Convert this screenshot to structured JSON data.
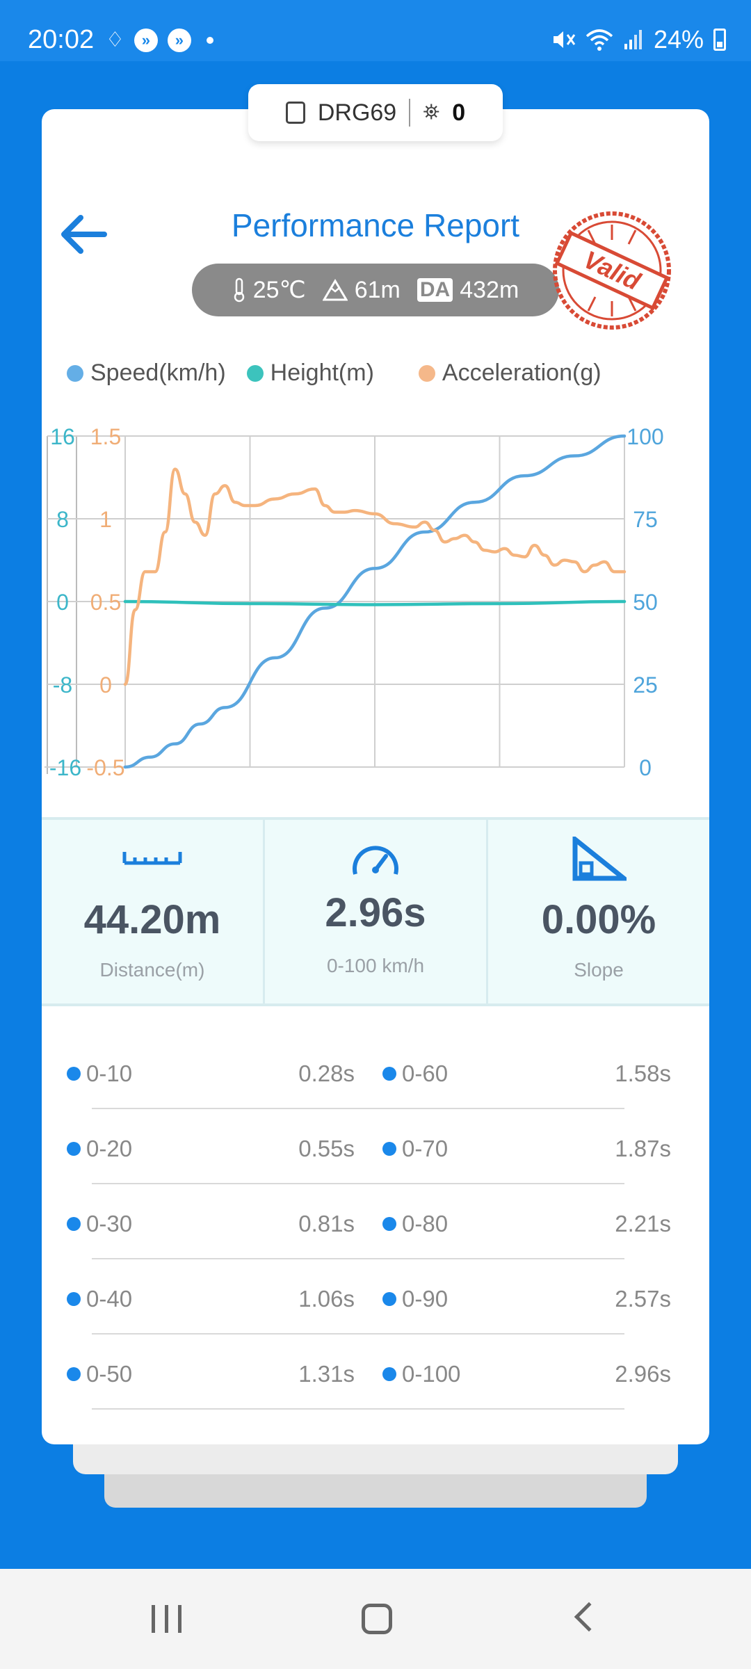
{
  "status_bar": {
    "time": "20:02",
    "battery": "24%"
  },
  "device_tag": {
    "device": "DRG69",
    "satellites": "0"
  },
  "header": {
    "title": "Performance Report",
    "stamp": "Valid"
  },
  "conditions": {
    "temperature": "25℃",
    "altitude": "61m",
    "da_label": "DA",
    "density_altitude": "432m"
  },
  "legend": [
    {
      "label": "Speed(km/h)",
      "color": "#64aee6"
    },
    {
      "label": "Height(m)",
      "color": "#3cc3bd"
    },
    {
      "label": "Acceleration(g)",
      "color": "#f5b88a"
    }
  ],
  "chart_data": {
    "type": "line",
    "series": [
      {
        "name": "Speed(km/h)",
        "axis": "right",
        "color": "#5aa6df",
        "x": [
          0,
          0.05,
          0.1,
          0.15,
          0.2,
          0.3,
          0.4,
          0.5,
          0.6,
          0.7,
          0.8,
          0.9,
          1.0
        ],
        "values": [
          0,
          3,
          7,
          13,
          18,
          33,
          48,
          60,
          71,
          80,
          88,
          94,
          100
        ]
      },
      {
        "name": "Height(m)",
        "axis": "left_outer",
        "color": "#2fc0bb",
        "x": [
          0,
          0.25,
          0.5,
          0.75,
          1.0
        ],
        "values": [
          0,
          -0.2,
          -0.3,
          -0.2,
          0
        ]
      },
      {
        "name": "Acceleration(g)",
        "axis": "left_inner",
        "color": "#f5b47e",
        "x": [
          0,
          0.02,
          0.04,
          0.06,
          0.08,
          0.1,
          0.12,
          0.14,
          0.16,
          0.18,
          0.2,
          0.22,
          0.24,
          0.26,
          0.3,
          0.34,
          0.38,
          0.4,
          0.42,
          0.44,
          0.46,
          0.5,
          0.54,
          0.58,
          0.6,
          0.62,
          0.64,
          0.66,
          0.68,
          0.7,
          0.72,
          0.74,
          0.76,
          0.78,
          0.8,
          0.82,
          0.84,
          0.86,
          0.88,
          0.9,
          0.92,
          0.94,
          0.96,
          0.98,
          1.0
        ],
        "values": [
          0,
          0.45,
          0.68,
          0.68,
          0.92,
          1.3,
          1.15,
          0.98,
          0.9,
          1.15,
          1.2,
          1.1,
          1.08,
          1.08,
          1.12,
          1.15,
          1.18,
          1.08,
          1.04,
          1.04,
          1.05,
          1.03,
          0.97,
          0.95,
          0.98,
          0.93,
          0.86,
          0.88,
          0.9,
          0.86,
          0.81,
          0.8,
          0.82,
          0.78,
          0.77,
          0.84,
          0.78,
          0.72,
          0.75,
          0.74,
          0.68,
          0.72,
          0.74,
          0.68,
          0.68
        ]
      }
    ],
    "axes": {
      "left_outer": {
        "ticks": [
          "16",
          "8",
          "0",
          "-8",
          "-16"
        ],
        "range": [
          -16,
          16
        ],
        "color": "#3cb6c9"
      },
      "left_inner": {
        "ticks": [
          "1.5",
          "1",
          "0.5",
          "0",
          "-0.5"
        ],
        "range": [
          -0.5,
          1.5
        ],
        "color": "#f0ad76"
      },
      "right": {
        "ticks": [
          "100",
          "75",
          "50",
          "25",
          "0"
        ],
        "range": [
          0,
          100
        ],
        "color": "#4ea4db"
      }
    },
    "grid": true,
    "legend_position": "top"
  },
  "stats": [
    {
      "value": "44.20m",
      "label": "Distance(m)",
      "icon": "ruler-icon"
    },
    {
      "value": "2.96s",
      "label": "0-100 km/h",
      "icon": "speedometer-icon"
    },
    {
      "value": "0.00%",
      "label": "Slope",
      "icon": "slope-icon"
    }
  ],
  "splits": [
    {
      "left_label": "0-10",
      "left_value": "0.28s",
      "right_label": "0-60",
      "right_value": "1.58s"
    },
    {
      "left_label": "0-20",
      "left_value": "0.55s",
      "right_label": "0-70",
      "right_value": "1.87s"
    },
    {
      "left_label": "0-30",
      "left_value": "0.81s",
      "right_label": "0-80",
      "right_value": "2.21s"
    },
    {
      "left_label": "0-40",
      "left_value": "1.06s",
      "right_label": "0-90",
      "right_value": "2.57s"
    },
    {
      "left_label": "0-50",
      "left_value": "1.31s",
      "right_label": "0-100",
      "right_value": "2.96s"
    }
  ]
}
